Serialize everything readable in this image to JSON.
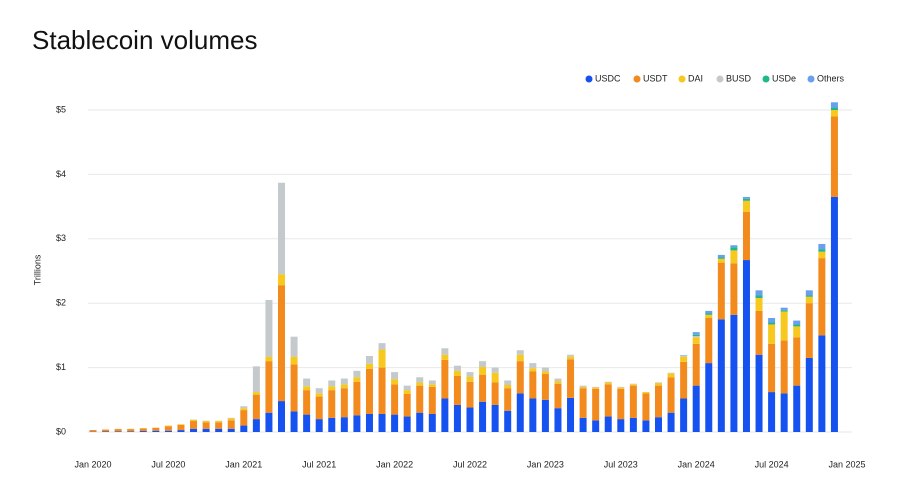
{
  "chart_data": {
    "type": "stacked_bar",
    "title": "Stablecoin volumes",
    "y_label": "Trillions",
    "categories": [
      "Jan 2020",
      null,
      null,
      null,
      null,
      null,
      "Jul 2020",
      null,
      null,
      null,
      null,
      null,
      "Jan 2021",
      null,
      null,
      null,
      null,
      null,
      "Jul 2021",
      null,
      null,
      null,
      null,
      null,
      "Jan 2022",
      null,
      null,
      null,
      null,
      null,
      "Jul 2022",
      null,
      null,
      null,
      null,
      null,
      "Jan 2023",
      null,
      null,
      null,
      null,
      null,
      "Jul 2023",
      null,
      null,
      null,
      null,
      null,
      "Jan 2024",
      null,
      null,
      null,
      null,
      null,
      "Jul 2024",
      null,
      null,
      null,
      null,
      null,
      "Jan 2025"
    ],
    "series": [
      {
        "name": "USDC",
        "color": "#1652f0",
        "values": [
          0.005,
          0.008,
          0.01,
          0.01,
          0.015,
          0.02,
          0.02,
          0.03,
          0.05,
          0.05,
          0.05,
          0.05,
          0.1,
          0.2,
          0.3,
          0.48,
          0.32,
          0.27,
          0.2,
          0.22,
          0.23,
          0.26,
          0.28,
          0.28,
          0.27,
          0.24,
          0.3,
          0.28,
          0.52,
          0.42,
          0.38,
          0.47,
          0.42,
          0.33,
          0.6,
          0.52,
          0.5,
          0.37,
          0.53,
          0.22,
          0.18,
          0.24,
          0.2,
          0.22,
          0.18,
          0.23,
          0.3,
          0.52,
          0.72,
          1.07,
          1.75,
          1.82,
          2.67,
          1.2,
          0.62,
          0.6,
          0.72,
          1.15,
          1.5,
          3.65,
          null
        ]
      },
      {
        "name": "USDT",
        "color": "#f28a1e",
        "values": [
          0.025,
          0.03,
          0.035,
          0.035,
          0.04,
          0.045,
          0.07,
          0.08,
          0.12,
          0.1,
          0.1,
          0.13,
          0.24,
          0.38,
          0.8,
          1.8,
          0.73,
          0.38,
          0.35,
          0.43,
          0.45,
          0.52,
          0.7,
          0.72,
          0.47,
          0.35,
          0.42,
          0.42,
          0.6,
          0.45,
          0.4,
          0.42,
          0.35,
          0.35,
          0.5,
          0.42,
          0.4,
          0.38,
          0.6,
          0.46,
          0.49,
          0.5,
          0.47,
          0.5,
          0.42,
          0.49,
          0.55,
          0.57,
          0.65,
          0.7,
          0.88,
          0.8,
          0.75,
          0.68,
          0.75,
          0.82,
          0.75,
          0.85,
          1.2,
          1.25,
          null
        ]
      },
      {
        "name": "DAI",
        "color": "#f7c81e",
        "values": [
          0,
          0,
          0.005,
          0.005,
          0.005,
          0.005,
          0.01,
          0.01,
          0.02,
          0.02,
          0.02,
          0.03,
          0.03,
          0.04,
          0.07,
          0.17,
          0.12,
          0.06,
          0.05,
          0.06,
          0.06,
          0.07,
          0.08,
          0.28,
          0.08,
          0.06,
          0.05,
          0.04,
          0.08,
          0.08,
          0.08,
          0.12,
          0.15,
          0.05,
          0.1,
          0.05,
          0.04,
          0.04,
          0.04,
          0.02,
          0.02,
          0.03,
          0.02,
          0.02,
          0.02,
          0.04,
          0.06,
          0.08,
          0.1,
          0.05,
          0.06,
          0.2,
          0.17,
          0.2,
          0.3,
          0.45,
          0.17,
          0.1,
          0.1,
          0.1,
          null
        ]
      },
      {
        "name": "BUSD",
        "color": "#c4c9cc",
        "values": [
          0,
          0,
          0,
          0,
          0,
          0,
          0,
          0,
          0.005,
          0.005,
          0.005,
          0.01,
          0.03,
          0.4,
          0.88,
          1.42,
          0.31,
          0.12,
          0.08,
          0.09,
          0.09,
          0.1,
          0.12,
          0.1,
          0.11,
          0.07,
          0.08,
          0.06,
          0.1,
          0.08,
          0.07,
          0.09,
          0.08,
          0.07,
          0.07,
          0.08,
          0.06,
          0.04,
          0.03,
          0.02,
          0.01,
          0.01,
          0.01,
          0.01,
          0,
          0.01,
          0.01,
          0.01,
          0.02,
          0,
          0,
          0,
          0,
          0,
          0,
          0,
          0,
          0,
          0,
          0,
          null
        ]
      },
      {
        "name": "USDe",
        "color": "#1fb88a",
        "values": [
          0,
          0,
          0,
          0,
          0,
          0,
          0,
          0,
          0,
          0,
          0,
          0,
          0,
          0,
          0,
          0,
          0,
          0,
          0,
          0,
          0,
          0,
          0,
          0,
          0,
          0,
          0,
          0,
          0,
          0,
          0,
          0,
          0,
          0,
          0,
          0,
          0,
          0,
          0,
          0,
          0,
          0,
          0,
          0,
          0,
          0,
          0,
          0,
          0.02,
          0.02,
          0.02,
          0.05,
          0.03,
          0.04,
          0.03,
          0.02,
          0.03,
          0.02,
          0.04,
          0.04,
          null
        ]
      },
      {
        "name": "Others",
        "color": "#6a9ff0",
        "values": [
          0,
          0,
          0,
          0,
          0,
          0,
          0,
          0,
          0,
          0,
          0,
          0,
          0,
          0,
          0,
          0,
          0,
          0,
          0,
          0,
          0,
          0,
          0,
          0,
          0,
          0,
          0,
          0,
          0,
          0,
          0,
          0,
          0,
          0,
          0,
          0,
          0,
          0,
          0,
          0,
          0,
          0,
          0,
          0,
          0,
          0,
          0,
          0.01,
          0.04,
          0.04,
          0.04,
          0.03,
          0.03,
          0.08,
          0.07,
          0.04,
          0.06,
          0.08,
          0.08,
          0.08,
          null
        ]
      }
    ],
    "ylim": [
      0,
      5
    ],
    "yticks": [
      {
        "value": 0,
        "label": "$0"
      },
      {
        "value": 1,
        "label": "$1"
      },
      {
        "value": 2,
        "label": "$2"
      },
      {
        "value": 3,
        "label": "$3"
      },
      {
        "value": 4,
        "label": "$4"
      },
      {
        "value": 5,
        "label": "$5"
      }
    ],
    "grid": true,
    "legend": "top-right"
  }
}
